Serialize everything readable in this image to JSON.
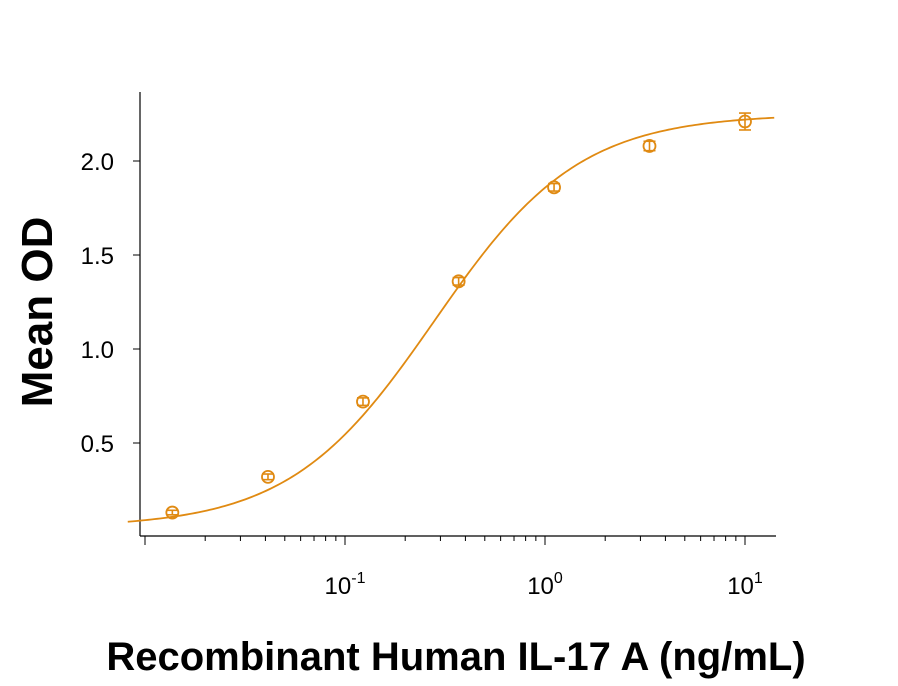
{
  "chart_data": {
    "type": "scatter",
    "title": "",
    "xlabel": "Recombinant Human IL-17 A (ng/mL)",
    "ylabel": "Mean OD",
    "x_scale": "log",
    "xlim": [
      0.0082,
      14
    ],
    "ylim": [
      0.05,
      2.35
    ],
    "grid": false,
    "color": "#E08A12",
    "x_ticks": [
      {
        "value": 0.1,
        "base": "10",
        "exp": "-1"
      },
      {
        "value": 1,
        "base": "10",
        "exp": "0"
      },
      {
        "value": 10,
        "base": "10",
        "exp": "1"
      }
    ],
    "y_ticks": [
      {
        "value": 0.5,
        "label": "0.5"
      },
      {
        "value": 1.0,
        "label": "1.0"
      },
      {
        "value": 1.5,
        "label": "1.5"
      },
      {
        "value": 2.0,
        "label": "2.0"
      }
    ],
    "series": [
      {
        "x": [
          0.0137,
          0.0412,
          0.123,
          0.37,
          1.11,
          3.33,
          10.0
        ],
        "y": [
          0.13,
          0.32,
          0.72,
          1.36,
          1.86,
          2.08,
          2.21
        ],
        "err": [
          0.012,
          0.015,
          0.02,
          0.02,
          0.02,
          0.025,
          0.045
        ]
      }
    ],
    "fit": {
      "type": "4PL",
      "bottom": 0.05,
      "top": 2.25,
      "ec50": 0.28,
      "hill": 1.2
    }
  }
}
